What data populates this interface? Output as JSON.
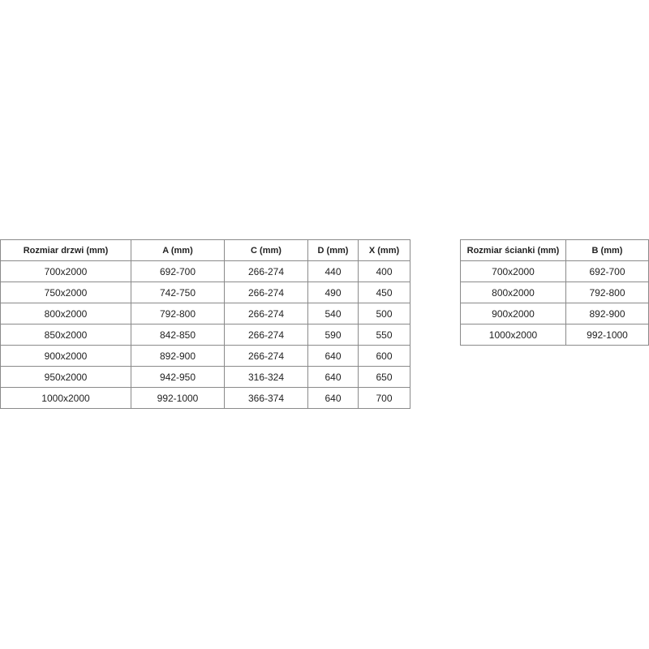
{
  "door_table": {
    "headers": [
      "Rozmiar drzwi (mm)",
      "A (mm)",
      "C (mm)",
      "D (mm)",
      "X (mm)"
    ],
    "rows": [
      [
        "700x2000",
        "692-700",
        "266-274",
        "440",
        "400"
      ],
      [
        "750x2000",
        "742-750",
        "266-274",
        "490",
        "450"
      ],
      [
        "800x2000",
        "792-800",
        "266-274",
        "540",
        "500"
      ],
      [
        "850x2000",
        "842-850",
        "266-274",
        "590",
        "550"
      ],
      [
        "900x2000",
        "892-900",
        "266-274",
        "640",
        "600"
      ],
      [
        "950x2000",
        "942-950",
        "316-324",
        "640",
        "650"
      ],
      [
        "1000x2000",
        "992-1000",
        "366-374",
        "640",
        "700"
      ]
    ]
  },
  "wall_table": {
    "headers": [
      "Rozmiar ścianki (mm)",
      "B (mm)"
    ],
    "rows": [
      [
        "700x2000",
        "692-700"
      ],
      [
        "800x2000",
        "792-800"
      ],
      [
        "900x2000",
        "892-900"
      ],
      [
        "1000x2000",
        "992-1000"
      ]
    ]
  }
}
